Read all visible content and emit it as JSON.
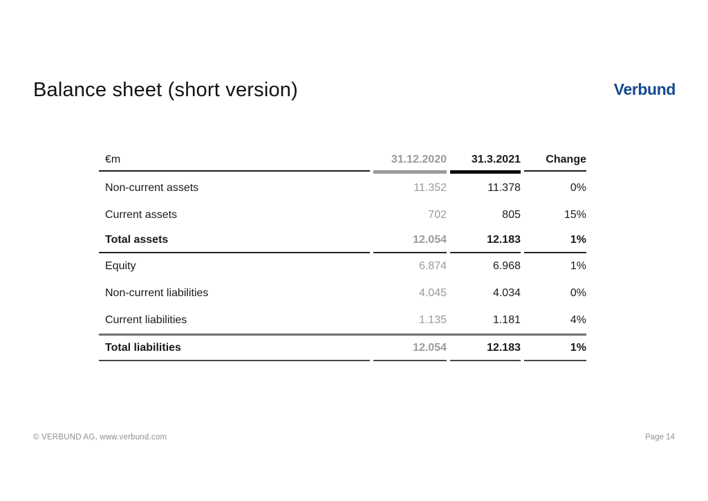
{
  "slide": {
    "title": "Balance sheet (short version)",
    "logo_text": "Verbund",
    "page_label": "Page 14"
  },
  "table": {
    "unit_header": "€m",
    "columns": [
      "31.12.2020",
      "31.3.2021",
      "Change"
    ],
    "rows": [
      {
        "label": "Non-current assets",
        "v2020": "11.352",
        "v2021": "11.378",
        "change": "0%",
        "style": "regular"
      },
      {
        "label": "Current assets",
        "v2020": "702",
        "v2021": "805",
        "change": "15%",
        "style": "regular"
      },
      {
        "label": "Total assets",
        "v2020": "12.054",
        "v2021": "12.183",
        "change": "1%",
        "style": "total"
      },
      {
        "label": "Equity",
        "v2020": "6.874",
        "v2021": "6.968",
        "change": "1%",
        "style": "regular"
      },
      {
        "label": "Non-current liabilities",
        "v2020": "4.045",
        "v2021": "4.034",
        "change": "0%",
        "style": "regular"
      },
      {
        "label": "Current liabilities",
        "v2020": "1.135",
        "v2021": "1.181",
        "change": "4%",
        "style": "regular"
      },
      {
        "label": "Total liabilities",
        "v2020": "12.054",
        "v2021": "12.183",
        "change": "1%",
        "style": "total"
      }
    ]
  },
  "footer": {
    "left": "© VERBUND AG, www.verbund.com",
    "right": "Page 14"
  },
  "colors": {
    "brand_blue": "#14498f",
    "prior_period_gray": "#9a9a9a",
    "header_bar_gray": "#9a9a9a",
    "header_bar_black": "#0d0d0d",
    "section_rule_gray": "#6f6f6f",
    "footer_gray": "#8f8f8f"
  }
}
